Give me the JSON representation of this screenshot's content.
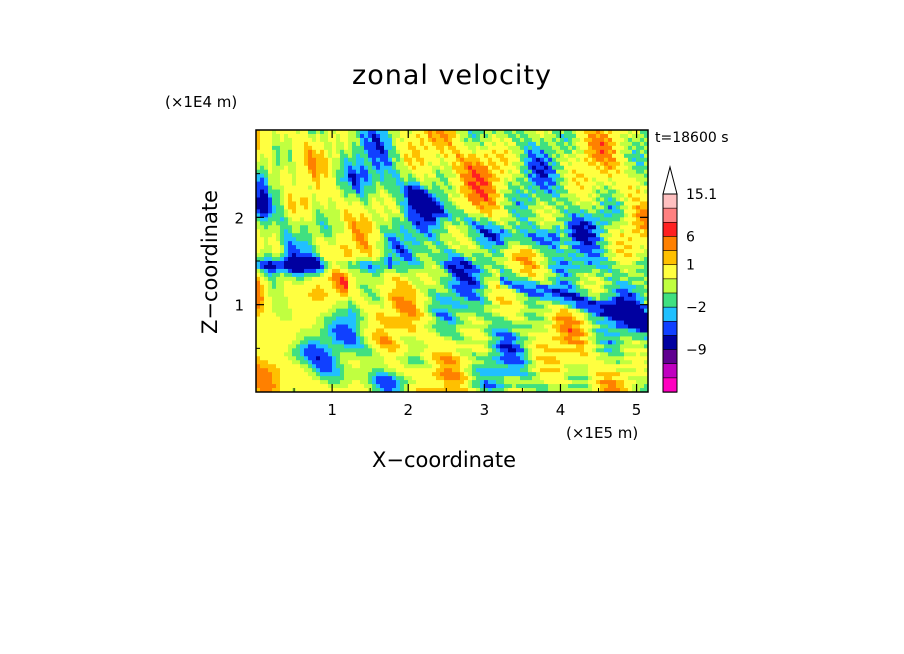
{
  "chart_data": {
    "type": "heatmap",
    "title": "zonal velocity",
    "xlabel": "X−coordinate",
    "ylabel": "Z−coordinate",
    "x_unit": "(×1E5 m)",
    "z_unit": "(×1E4 m)",
    "time_label": "t=18600 s",
    "xlim": [
      0,
      5.15
    ],
    "ylim": [
      0,
      3.0
    ],
    "x_ticks": [
      "1",
      "2",
      "3",
      "4",
      "5"
    ],
    "y_ticks": [
      "1",
      "2"
    ],
    "x_tick_values": [
      1,
      2,
      3,
      4,
      5
    ],
    "y_tick_values": [
      1,
      2
    ],
    "colorbar": {
      "labels": [
        "15.1",
        "6",
        "1",
        "−2",
        "−9"
      ],
      "levels": [
        15.1,
        12,
        9,
        6,
        3,
        1,
        0,
        -1,
        -2,
        -3,
        -6,
        -9,
        -12
      ],
      "colors": [
        "#ffc0c0",
        "#ff8080",
        "#ff2020",
        "#ff8000",
        "#ffc000",
        "#ffff40",
        "#c0ff40",
        "#40e080",
        "#20c0ff",
        "#1040ff",
        "#0000a0",
        "#600090",
        "#c000c0",
        "#ff00c0"
      ]
    }
  }
}
